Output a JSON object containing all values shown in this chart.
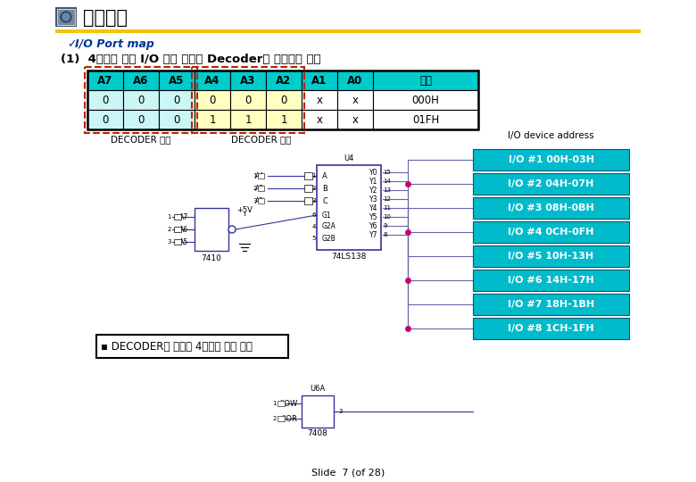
{
  "title": "주변장치",
  "subtitle": "I/O Port map",
  "section": "(1)  4바이트 단위 I/O 영역 분할을 Decoder로 설계하는 방법",
  "table_headers": [
    "A7",
    "A6",
    "A5",
    "A4",
    "A3",
    "A2",
    "A1",
    "A0",
    "영역"
  ],
  "table_row1": [
    "0",
    "0",
    "0",
    "0",
    "0",
    "0",
    "x",
    "x",
    "000H"
  ],
  "table_row2": [
    "0",
    "0",
    "0",
    "1",
    "1",
    "1",
    "x",
    "x",
    "01FH"
  ],
  "header_bg": "#00CCCC",
  "sel_bg": "#CCF5F5",
  "inp_bg": "#FFFFC0",
  "white_bg": "#FFFFFF",
  "decoder_sel_label": "DECODER 선택",
  "decoder_inp_label": "DECODER 입력",
  "io_device_label": "I/O device address",
  "io_boxes": [
    "I/O #1 00H-03H",
    "I/O #2 04H-07H",
    "I/O #3 08H-0BH",
    "I/O #4 0CH-0FH",
    "I/O #5 10H-13H",
    "I/O #6 14H-17H",
    "I/O #7 18H-1BH",
    "I/O #8 1CH-1FH"
  ],
  "io_box_color": "#00BBCC",
  "bullet_text": "▪ DECODER를 이용한 4바이트 단위 분할",
  "slide_footer": "Slide  7 (of 28)",
  "gold_line_color": "#F5C400",
  "dashed_red": "#BB2200",
  "line_blue": "#6666AA",
  "line_red": "#CC0077",
  "nand_color": "#333399",
  "dec_color": "#333399"
}
